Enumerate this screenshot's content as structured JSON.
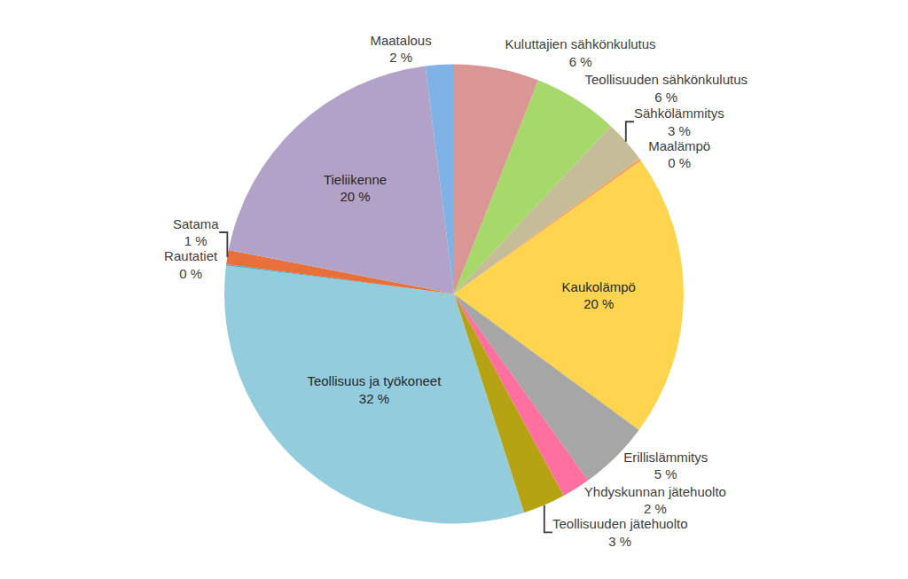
{
  "chart_data": {
    "type": "pie",
    "categories": [
      "Kuluttajien sähkönkulutus",
      "Teollisuuden sähkönkulutus",
      "Sähkölämmitys",
      "Maalämpö",
      "Kaukolämpö",
      "Erillislämmitys",
      "Yhdyskunnan jätehuolto",
      "Teollisuuden jätehuolto",
      "Teollisuus ja työkoneet",
      "Rautatiet",
      "Satama",
      "Tieliikenne",
      "Maatalous"
    ],
    "values": [
      6,
      6,
      3,
      0.2,
      20,
      5,
      2,
      3,
      32,
      0.1,
      1,
      20,
      2
    ],
    "value_labels": [
      "6 %",
      "6 %",
      "3 %",
      "0 %",
      "20 %",
      "5 %",
      "2 %",
      "3 %",
      "32 %",
      "0 %",
      "1 %",
      "20 %",
      "2 %"
    ],
    "colors": [
      "#D99694",
      "#A6D86A",
      "#C4BD97",
      "#F4A460",
      "#FFD54F",
      "#A6A6A6",
      "#FF6F9F",
      "#B5A313",
      "#93CDDD",
      "#4BACC6",
      "#E8703A",
      "#B3A2C7",
      "#7FB2E5"
    ],
    "data_labels": true
  }
}
